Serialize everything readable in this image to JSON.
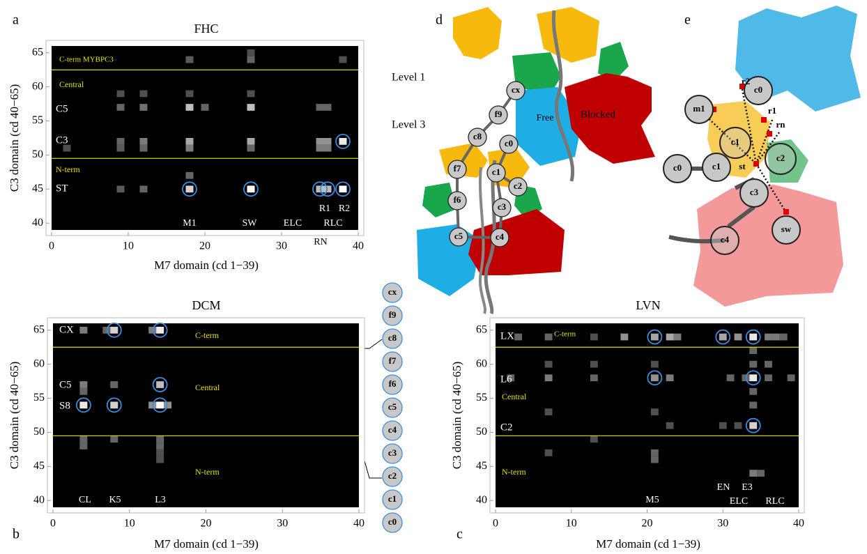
{
  "chart_data": [
    {
      "type": "heatmap",
      "panel": "a",
      "title": "FHC",
      "xlabel": "M7 domain (cd 1−39)",
      "ylabel": "C3 domain (cd 40−65)",
      "xlim": [
        0,
        40
      ],
      "ylim": [
        39,
        66
      ],
      "xticks": [
        0,
        10,
        20,
        30,
        40
      ],
      "yticks": [
        40,
        45,
        50,
        55,
        60,
        65
      ],
      "boundaries": [
        62.5,
        49.5
      ],
      "annotations": [
        "C-term MYBPC3",
        "Central",
        "C5",
        "C3",
        "N-term",
        "ST",
        "M1",
        "SW",
        "ELC",
        "RLC",
        "RN",
        "R1",
        "R2"
      ],
      "cells": [
        [
          18,
          64,
          0.25
        ],
        [
          26,
          64,
          0.3
        ],
        [
          26,
          65,
          0.2
        ],
        [
          38,
          64,
          0.2
        ],
        [
          9,
          59,
          0.2
        ],
        [
          12,
          59,
          0.2
        ],
        [
          18,
          59,
          0.2
        ],
        [
          26,
          59,
          0.2
        ],
        [
          9,
          57,
          0.3
        ],
        [
          12,
          57,
          0.35
        ],
        [
          18,
          57,
          0.7
        ],
        [
          20,
          57,
          0.3
        ],
        [
          26,
          57,
          0.7
        ],
        [
          35,
          57,
          0.3
        ],
        [
          36,
          57,
          0.3
        ],
        [
          2,
          51,
          0.2
        ],
        [
          9,
          52,
          0.3
        ],
        [
          9,
          51,
          0.25
        ],
        [
          12,
          52,
          0.4
        ],
        [
          12,
          51,
          0.3
        ],
        [
          18,
          52,
          0.6
        ],
        [
          18,
          51,
          0.4
        ],
        [
          26,
          52,
          0.6
        ],
        [
          26,
          51,
          0.3
        ],
        [
          35,
          52,
          0.5
        ],
        [
          36,
          52,
          0.5
        ],
        [
          35,
          51,
          0.4
        ],
        [
          36,
          51,
          0.4
        ],
        [
          38,
          52,
          0.9
        ],
        [
          18,
          47,
          0.3
        ],
        [
          9,
          45,
          0.25
        ],
        [
          12,
          45,
          0.3
        ],
        [
          18,
          45,
          0.8
        ],
        [
          26,
          45,
          1
        ],
        [
          35,
          45,
          0.7
        ],
        [
          36,
          45,
          0.7
        ],
        [
          38,
          45,
          1
        ]
      ],
      "circles": [
        [
          18,
          45
        ],
        [
          26,
          45
        ],
        [
          35,
          45
        ],
        [
          36,
          45
        ],
        [
          38,
          45
        ],
        [
          38,
          52
        ]
      ]
    },
    {
      "type": "heatmap",
      "panel": "b",
      "title": "DCM",
      "xlabel": "M7 domain (cd 1−39)",
      "ylabel": "C3 domain (cd 40−65)",
      "xlim": [
        0,
        40
      ],
      "ylim": [
        39,
        66
      ],
      "xticks": [
        0,
        10,
        20,
        30,
        40
      ],
      "yticks": [
        40,
        45,
        50,
        55,
        60,
        65
      ],
      "boundaries": [
        62.5,
        49.5
      ],
      "annotations": [
        "CX",
        "C-term",
        "C5",
        "Central",
        "S8",
        "N-term",
        "CL",
        "K5",
        "L3"
      ],
      "cells": [
        [
          4,
          65,
          0.4
        ],
        [
          7,
          65,
          0.3
        ],
        [
          8,
          65,
          0.8
        ],
        [
          13,
          65,
          0.4
        ],
        [
          14,
          65,
          0.9
        ],
        [
          4,
          57,
          0.4
        ],
        [
          8,
          57,
          0.3
        ],
        [
          14,
          57,
          0.7
        ],
        [
          4,
          56,
          0.3
        ],
        [
          4,
          54,
          0.9
        ],
        [
          8,
          54,
          0.8
        ],
        [
          13,
          54,
          0.5
        ],
        [
          14,
          54,
          1
        ],
        [
          15,
          54,
          0.5
        ],
        [
          4,
          49,
          0.3
        ],
        [
          8,
          49,
          0.3
        ],
        [
          14,
          49,
          0.3
        ],
        [
          4,
          48,
          0.3
        ],
        [
          14,
          48,
          0.3
        ],
        [
          14,
          47,
          0.2
        ],
        [
          14,
          46,
          0.2
        ]
      ],
      "circles": [
        [
          8,
          65
        ],
        [
          14,
          65
        ],
        [
          14,
          57
        ],
        [
          4,
          54
        ],
        [
          8,
          54
        ],
        [
          14,
          54
        ]
      ]
    },
    {
      "type": "heatmap",
      "panel": "c",
      "title": "LVN",
      "xlabel": "M7 domain (cd 1−39)",
      "ylabel": "C3 domain (cd 40−65)",
      "xlim": [
        0,
        40
      ],
      "ylim": [
        39,
        66
      ],
      "xticks": [
        0,
        10,
        20,
        30,
        40
      ],
      "yticks": [
        40,
        45,
        50,
        55,
        60,
        65
      ],
      "boundaries": [
        62.5,
        49.5
      ],
      "annotations": [
        "LX",
        "C-term",
        "L6",
        "Central",
        "C2",
        "N-term",
        "EN",
        "E3",
        "ELC",
        "RLC",
        "M5"
      ],
      "cells": [
        [
          3,
          64,
          0.3
        ],
        [
          7,
          64,
          0.3
        ],
        [
          13,
          64,
          0.2
        ],
        [
          17,
          64,
          0.5
        ],
        [
          21,
          64,
          0.6
        ],
        [
          23,
          64,
          0.6
        ],
        [
          24,
          64,
          0.4
        ],
        [
          30,
          64,
          0.6
        ],
        [
          32,
          64,
          0.5
        ],
        [
          34,
          64,
          0.9
        ],
        [
          36,
          64,
          0.4
        ],
        [
          37,
          64,
          0.4
        ],
        [
          38,
          64,
          0.3
        ],
        [
          7,
          60,
          0.2
        ],
        [
          13,
          60,
          0.2
        ],
        [
          21,
          60,
          0.2
        ],
        [
          34,
          60,
          0.3
        ],
        [
          36,
          60,
          0.3
        ],
        [
          34,
          62,
          0.3
        ],
        [
          2,
          58,
          0.3
        ],
        [
          7,
          58,
          0.4
        ],
        [
          13,
          58,
          0.3
        ],
        [
          21,
          58,
          0.5
        ],
        [
          23,
          58,
          0.4
        ],
        [
          31,
          58,
          0.3
        ],
        [
          33,
          58,
          0.3
        ],
        [
          34,
          58,
          0.9
        ],
        [
          36,
          58,
          0.3
        ],
        [
          39,
          58,
          0.3
        ],
        [
          34,
          56,
          0.3
        ],
        [
          34,
          54,
          0.3
        ],
        [
          7,
          53,
          0.2
        ],
        [
          21,
          53,
          0.2
        ],
        [
          23,
          51,
          0.2
        ],
        [
          30,
          51,
          0.2
        ],
        [
          32,
          51,
          0.2
        ],
        [
          34,
          51,
          0.8
        ],
        [
          13,
          49,
          0.2
        ],
        [
          7,
          47,
          0.2
        ],
        [
          21,
          47,
          0.3
        ],
        [
          21,
          46,
          0.3
        ],
        [
          34,
          44,
          0.4
        ],
        [
          35,
          44,
          0.3
        ]
      ],
      "circles": [
        [
          21,
          64
        ],
        [
          30,
          64
        ],
        [
          34,
          64
        ],
        [
          21,
          58
        ],
        [
          34,
          58
        ],
        [
          34,
          51
        ]
      ]
    }
  ],
  "diagram_d": {
    "label": "d",
    "levels": [
      "Level 1",
      "Level 3"
    ],
    "regions": [
      "Free",
      "Blocked"
    ],
    "nodes": [
      "cx",
      "f9",
      "c8",
      "c0",
      "f7",
      "c1",
      "c2",
      "f6",
      "c3",
      "c5",
      "c4"
    ]
  },
  "diagram_e": {
    "label": "e",
    "nodes": [
      "c0",
      "m1",
      "r2",
      "r1",
      "rn",
      "c1",
      "c2",
      "c0",
      "c1",
      "st",
      "c3",
      "c4",
      "sw"
    ]
  },
  "chain": {
    "nodes": [
      "cx",
      "f9",
      "c8",
      "f7",
      "f6",
      "c5",
      "c4",
      "c3",
      "c2",
      "c1",
      "c0"
    ]
  }
}
